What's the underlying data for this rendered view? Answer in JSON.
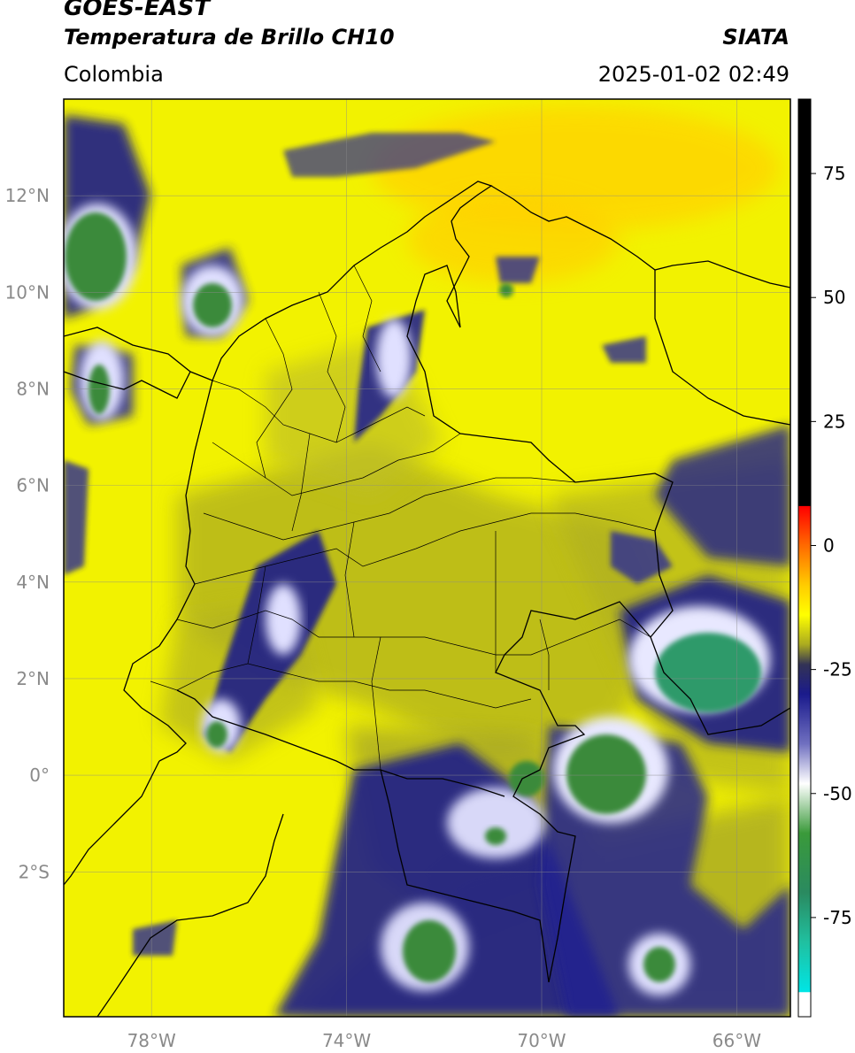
{
  "header": {
    "satellite": "GOES-EAST",
    "product": "Temperatura de Brillo CH10",
    "region": "Colombia",
    "organization": "SIATA",
    "timestamp": "2025-01-02 02:49"
  },
  "map": {
    "extent": {
      "lon_min": -79.8,
      "lon_max": -64.9,
      "lat_min": -5.0,
      "lat_max": 14.0
    },
    "lat_ticks": [
      {
        "value": 12,
        "label": "12°N"
      },
      {
        "value": 10,
        "label": "10°N"
      },
      {
        "value": 8,
        "label": "8°N"
      },
      {
        "value": 6,
        "label": "6°N"
      },
      {
        "value": 4,
        "label": "4°N"
      },
      {
        "value": 2,
        "label": "2°N"
      },
      {
        "value": 0,
        "label": "0°"
      },
      {
        "value": -2,
        "label": "2°S"
      }
    ],
    "lon_ticks": [
      {
        "value": -78,
        "label": "78°W"
      },
      {
        "value": -74,
        "label": "74°W"
      },
      {
        "value": -70,
        "label": "70°W"
      },
      {
        "value": -66,
        "label": "66°W"
      }
    ],
    "colors": {
      "background": "#ffff00",
      "warm_cloud": "#b8b820",
      "mid_cloud": "#1a1a8c",
      "cold_cloud": "#ffffff",
      "very_cold": "#2e8b57",
      "border": "#000000",
      "grid": "#8a8a8a"
    }
  },
  "colorbar": {
    "min": -95,
    "max": 90,
    "ticks": [
      {
        "value": 75,
        "label": "75"
      },
      {
        "value": 50,
        "label": "50"
      },
      {
        "value": 25,
        "label": "25"
      },
      {
        "value": 0,
        "label": "0"
      },
      {
        "value": -25,
        "label": "-25"
      },
      {
        "value": -50,
        "label": "-50"
      },
      {
        "value": -75,
        "label": "-75"
      }
    ],
    "stops": [
      {
        "value": 90,
        "color": "#000000"
      },
      {
        "value": 8,
        "color": "#000000"
      },
      {
        "value": 7.9,
        "color": "#ff0000"
      },
      {
        "value": 0,
        "color": "#ff6a00"
      },
      {
        "value": -8,
        "color": "#ffcc00"
      },
      {
        "value": -14,
        "color": "#ffff00"
      },
      {
        "value": -20,
        "color": "#aaaa20"
      },
      {
        "value": -24,
        "color": "#333355"
      },
      {
        "value": -30,
        "color": "#1a1a8c"
      },
      {
        "value": -40,
        "color": "#7070c0"
      },
      {
        "value": -48,
        "color": "#ffffff"
      },
      {
        "value": -58,
        "color": "#3a9a3a"
      },
      {
        "value": -70,
        "color": "#2a8a60"
      },
      {
        "value": -80,
        "color": "#20c0a0"
      },
      {
        "value": -90,
        "color": "#00e5e5"
      },
      {
        "value": -90.1,
        "color": "#ffffff"
      },
      {
        "value": -95,
        "color": "#ffffff"
      }
    ]
  }
}
